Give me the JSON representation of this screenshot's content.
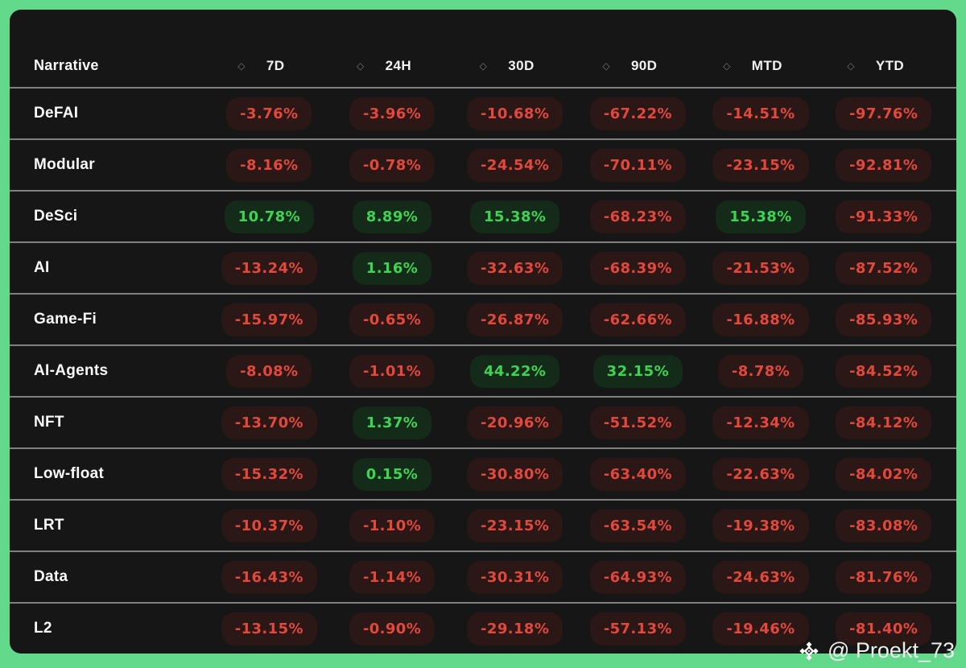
{
  "theme": {
    "background_green": "#63d98c",
    "panel": "#161616",
    "negative_text": "#e2483c",
    "negative_pill_bg": "#2a1716",
    "positive_text": "#3fd355",
    "positive_pill_bg": "#142b19"
  },
  "table": {
    "narrative_header": "Narrative",
    "sort_icon": "◇",
    "columns": [
      {
        "label": "7D"
      },
      {
        "label": "24H"
      },
      {
        "label": "30D"
      },
      {
        "label": "90D"
      },
      {
        "label": "MTD"
      },
      {
        "label": "YTD"
      }
    ],
    "rows": [
      {
        "name": "DeFAI",
        "values": [
          "-3.76%",
          "-3.96%",
          "-10.68%",
          "-67.22%",
          "-14.51%",
          "-97.76%"
        ]
      },
      {
        "name": "Modular",
        "values": [
          "-8.16%",
          "-0.78%",
          "-24.54%",
          "-70.11%",
          "-23.15%",
          "-92.81%"
        ]
      },
      {
        "name": "DeSci",
        "values": [
          "10.78%",
          "8.89%",
          "15.38%",
          "-68.23%",
          "15.38%",
          "-91.33%"
        ]
      },
      {
        "name": "AI",
        "values": [
          "-13.24%",
          "1.16%",
          "-32.63%",
          "-68.39%",
          "-21.53%",
          "-87.52%"
        ]
      },
      {
        "name": "Game-Fi",
        "values": [
          "-15.97%",
          "-0.65%",
          "-26.87%",
          "-62.66%",
          "-16.88%",
          "-85.93%"
        ]
      },
      {
        "name": "AI-Agents",
        "values": [
          "-8.08%",
          "-1.01%",
          "44.22%",
          "32.15%",
          "-8.78%",
          "-84.52%"
        ]
      },
      {
        "name": "NFT",
        "values": [
          "-13.70%",
          "1.37%",
          "-20.96%",
          "-51.52%",
          "-12.34%",
          "-84.12%"
        ]
      },
      {
        "name": "Low-float",
        "values": [
          "-15.32%",
          "0.15%",
          "-30.80%",
          "-63.40%",
          "-22.63%",
          "-84.02%"
        ]
      },
      {
        "name": "LRT",
        "values": [
          "-10.37%",
          "-1.10%",
          "-23.15%",
          "-63.54%",
          "-19.38%",
          "-83.08%"
        ]
      },
      {
        "name": "Data",
        "values": [
          "-16.43%",
          "-1.14%",
          "-30.31%",
          "-64.93%",
          "-24.63%",
          "-81.76%"
        ]
      },
      {
        "name": "L2",
        "values": [
          "-13.15%",
          "-0.90%",
          "-29.18%",
          "-57.13%",
          "-19.46%",
          "-81.40%"
        ]
      }
    ]
  },
  "watermark": {
    "handle": "@ Proekt_73",
    "icon": "binance-logo"
  }
}
